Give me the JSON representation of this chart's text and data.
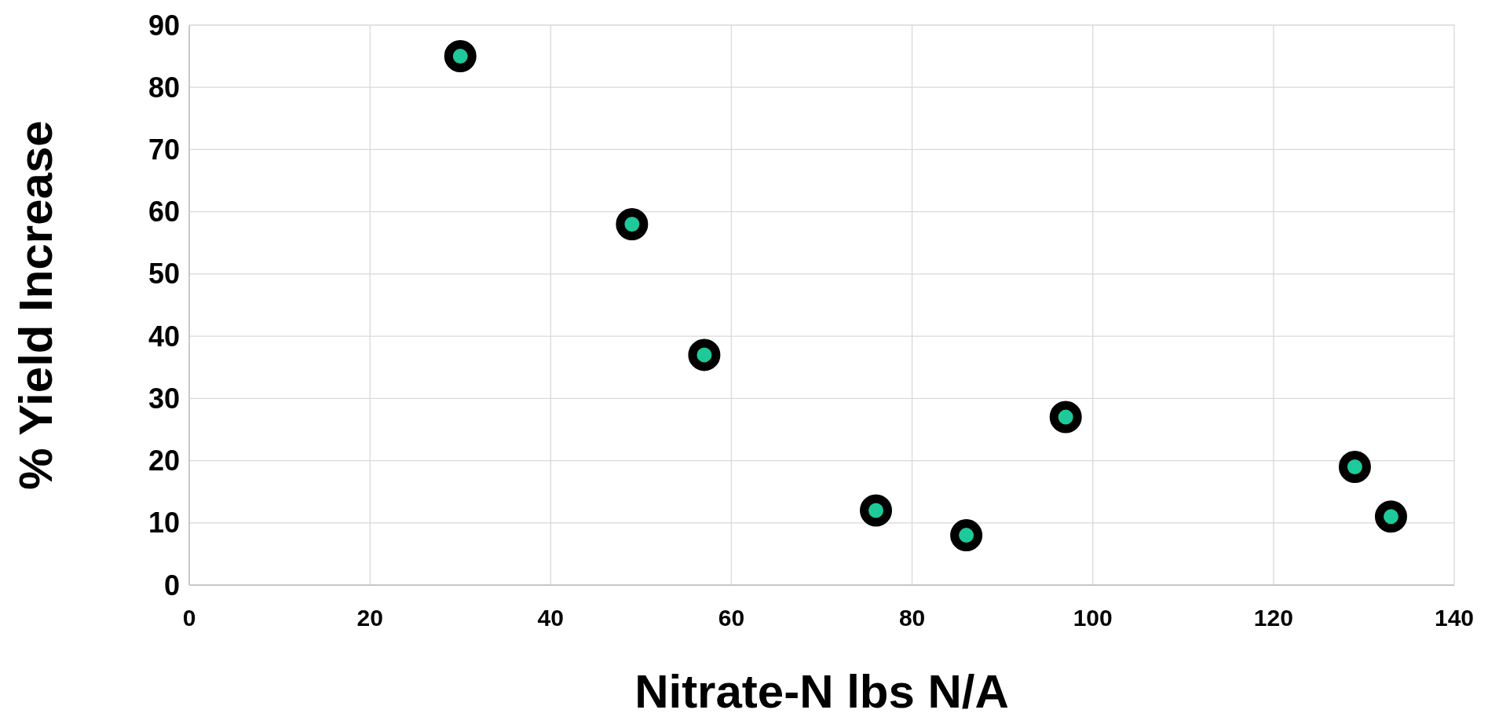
{
  "chart_data": {
    "type": "scatter",
    "xlabel": "Nitrate-N lbs N/A",
    "ylabel": "% Yield Increase",
    "x": [
      30,
      49,
      57,
      76,
      86,
      97,
      129,
      133
    ],
    "series": [
      {
        "color": "#1ec99a",
        "values": [
          85,
          58,
          37,
          12,
          8,
          27,
          19,
          11
        ]
      }
    ],
    "xlim": [
      0,
      140
    ],
    "xticks": [
      0,
      20,
      40,
      60,
      80,
      100,
      120,
      140
    ],
    "ylim": [
      0,
      90
    ],
    "yticks": [
      0,
      10,
      20,
      30,
      40,
      50,
      60,
      70,
      80,
      90
    ],
    "grid": true,
    "marker": "circle"
  }
}
